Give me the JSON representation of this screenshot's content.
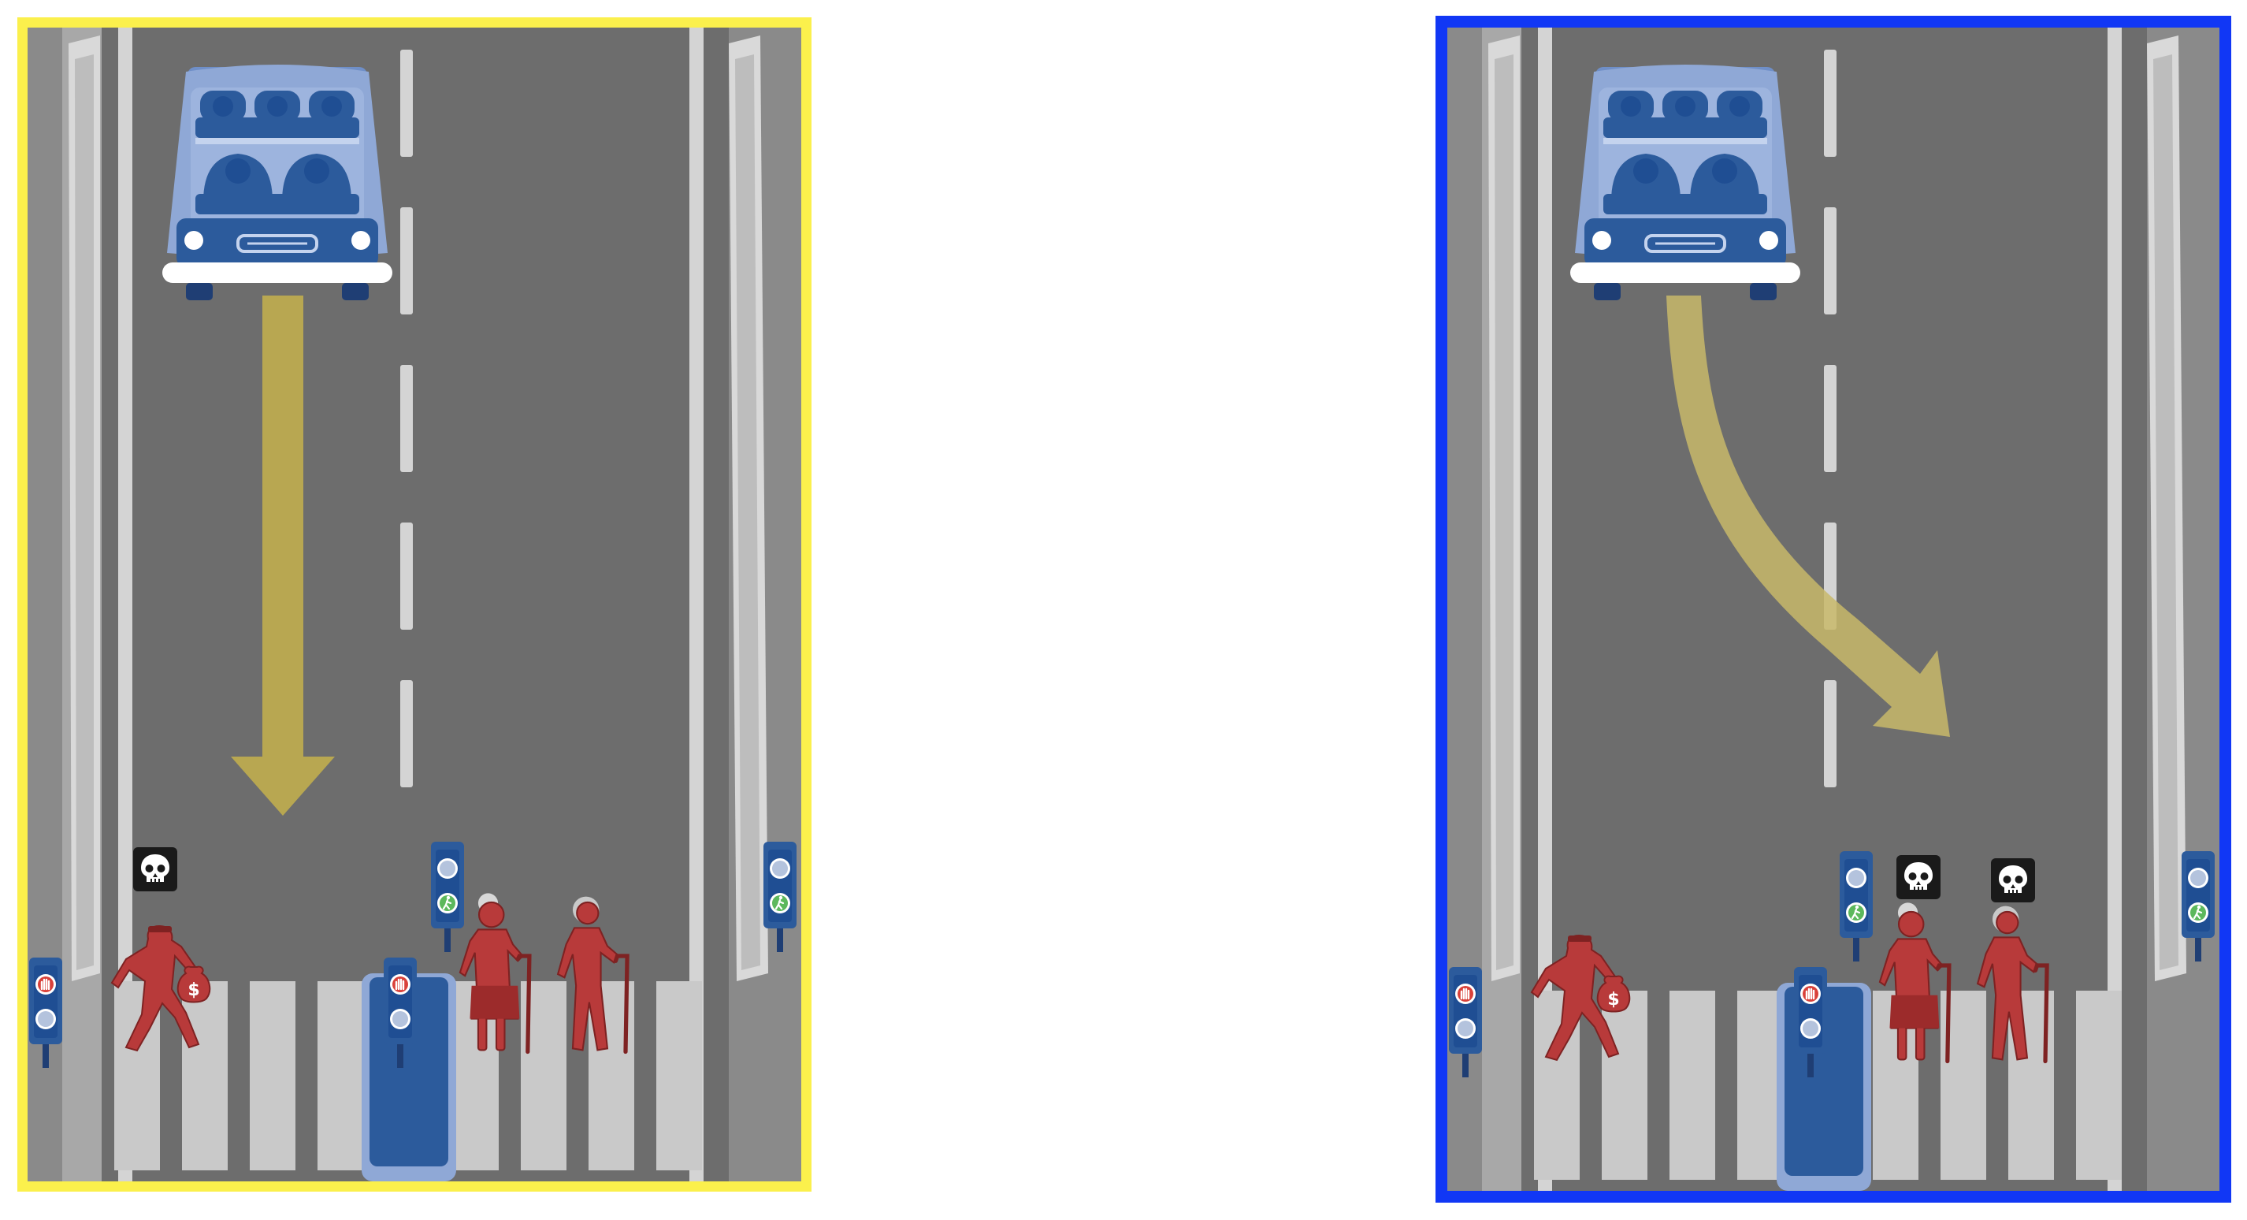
{
  "scenario": {
    "options": [
      {
        "id": "stay",
        "frame_color": "#fbf04c",
        "arrow": "straight",
        "deaths": [
          "criminal"
        ],
        "characters": [
          {
            "role": "criminal",
            "skull": true
          },
          {
            "role": "elderly-woman",
            "skull": false
          },
          {
            "role": "elderly-man",
            "skull": false
          }
        ]
      },
      {
        "id": "swerve",
        "frame_color": "#1137f5",
        "arrow": "swerve-right",
        "deaths": [
          "elderly-woman",
          "elderly-man"
        ],
        "characters": [
          {
            "role": "criminal",
            "skull": false
          },
          {
            "role": "elderly-woman",
            "skull": true
          },
          {
            "role": "elderly-man",
            "skull": true
          }
        ]
      }
    ]
  },
  "colors": {
    "road": "#6d6d6d",
    "curb": "#8a8a8a",
    "vehicle_body": "#8fa8d6",
    "vehicle_dark": "#2c5b9c",
    "arrow": "#b8a751",
    "pedestrian": "#b83a3a",
    "pedestrian_dark": "#8e2727",
    "signal_stop": "#d9413a",
    "signal_walk": "#5cb85c",
    "crosswalk": "#c9c9c9"
  },
  "icons": {
    "skull": "skull-icon",
    "stop_hand": "hand-stop-icon",
    "walk": "walking-person-icon",
    "money": "money-bag-icon"
  }
}
